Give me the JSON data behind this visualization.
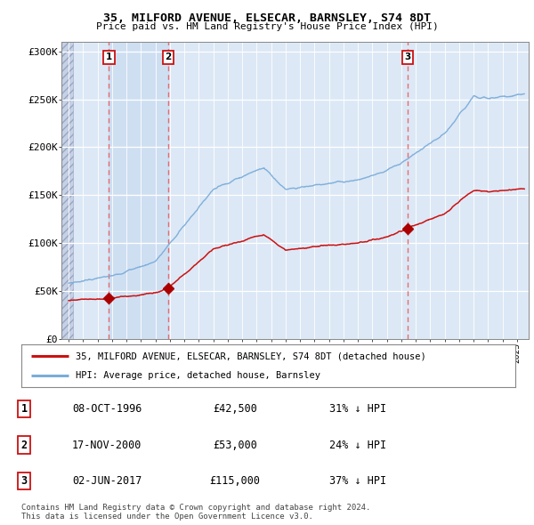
{
  "title": "35, MILFORD AVENUE, ELSECAR, BARNSLEY, S74 8DT",
  "subtitle": "Price paid vs. HM Land Registry's House Price Index (HPI)",
  "ylim": [
    0,
    310000
  ],
  "yticks": [
    0,
    50000,
    100000,
    150000,
    200000,
    250000,
    300000
  ],
  "ytick_labels": [
    "£0",
    "£50K",
    "£100K",
    "£150K",
    "£200K",
    "£250K",
    "£300K"
  ],
  "plot_bg": "#dce8f5",
  "hpi_color": "#7aacda",
  "price_color": "#cc1111",
  "dashed_color": "#ee5555",
  "sale_marker_color": "#aa0000",
  "sale_points": [
    {
      "year": 1996.78,
      "price": 42500,
      "label": "1"
    },
    {
      "year": 2000.88,
      "price": 53000,
      "label": "2"
    },
    {
      "year": 2017.42,
      "price": 115000,
      "label": "3"
    }
  ],
  "table_rows": [
    {
      "num": "1",
      "date": "08-OCT-1996",
      "price": "£42,500",
      "hpi": "31% ↓ HPI"
    },
    {
      "num": "2",
      "date": "17-NOV-2000",
      "price": "£53,000",
      "hpi": "24% ↓ HPI"
    },
    {
      "num": "3",
      "date": "02-JUN-2017",
      "price": "£115,000",
      "hpi": "37% ↓ HPI"
    }
  ],
  "legend_entries": [
    {
      "label": "35, MILFORD AVENUE, ELSECAR, BARNSLEY, S74 8DT (detached house)",
      "color": "#cc1111"
    },
    {
      "label": "HPI: Average price, detached house, Barnsley",
      "color": "#7aacda"
    }
  ],
  "footer": "Contains HM Land Registry data © Crown copyright and database right 2024.\nThis data is licensed under the Open Government Licence v3.0."
}
